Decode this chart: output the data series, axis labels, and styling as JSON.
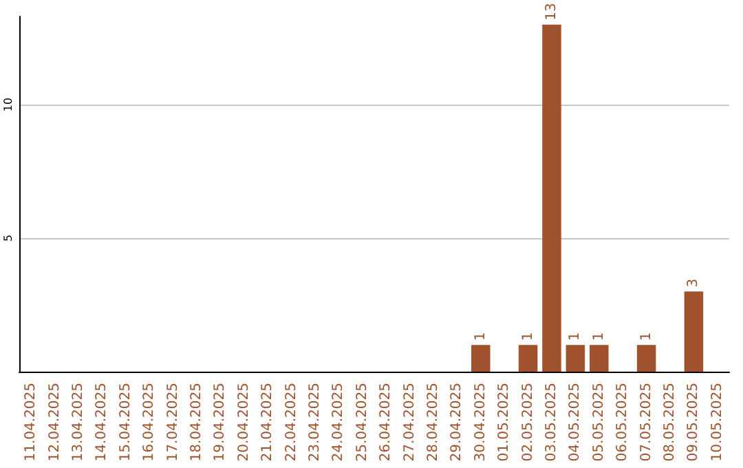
{
  "chart_data": {
    "type": "bar",
    "categories": [
      "11.04.2025",
      "12.04.2025",
      "13.04.2025",
      "14.04.2025",
      "15.04.2025",
      "16.04.2025",
      "17.04.2025",
      "18.04.2025",
      "19.04.2025",
      "20.04.2025",
      "21.04.2025",
      "22.04.2025",
      "23.04.2025",
      "24.04.2025",
      "25.04.2025",
      "26.04.2025",
      "27.04.2025",
      "28.04.2025",
      "29.04.2025",
      "30.04.2025",
      "01.05.2025",
      "02.05.2025",
      "03.05.2025",
      "04.05.2025",
      "05.05.2025",
      "06.05.2025",
      "07.05.2025",
      "08.05.2025",
      "09.05.2025",
      "10.05.2025"
    ],
    "values": [
      0,
      0,
      0,
      0,
      0,
      0,
      0,
      0,
      0,
      0,
      0,
      0,
      0,
      0,
      0,
      0,
      0,
      0,
      0,
      1,
      0,
      1,
      13,
      1,
      1,
      0,
      1,
      0,
      3,
      0
    ],
    "value_labels": [
      null,
      null,
      null,
      null,
      null,
      null,
      null,
      null,
      null,
      null,
      null,
      null,
      null,
      null,
      null,
      null,
      null,
      null,
      null,
      "1",
      null,
      "1",
      "13",
      "1",
      "1",
      null,
      "1",
      null,
      "3",
      null
    ],
    "color": "#a0522d",
    "ylim": [
      0,
      13.3
    ],
    "yticks": [
      5,
      10
    ],
    "grid": "y"
  }
}
